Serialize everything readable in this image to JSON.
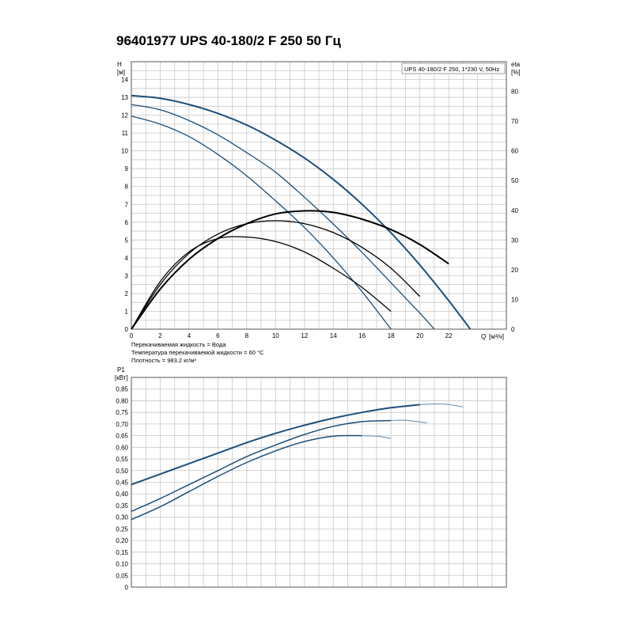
{
  "title": "96401977 UPS 40-180/2 F 250 50 Гц",
  "chart_data": [
    {
      "type": "line",
      "name": "head-and-efficiency",
      "ylabel": "H",
      "yunit": "[м]",
      "y2label": "eta",
      "y2unit": "[%]",
      "xlabel": "Q",
      "xunit": "[м³/ч]",
      "xlim": [
        0,
        26
      ],
      "ylim": [
        0,
        15
      ],
      "y2lim": [
        0,
        90
      ],
      "xticks": [
        0,
        2,
        4,
        6,
        8,
        10,
        12,
        14,
        16,
        18,
        20,
        22
      ],
      "yticks": [
        0,
        1,
        2,
        3,
        4,
        5,
        6,
        7,
        8,
        9,
        10,
        11,
        12,
        13,
        14
      ],
      "y2ticks": [
        0,
        10,
        20,
        30,
        40,
        50,
        60,
        70,
        80
      ],
      "legend_text": "UPS 40-180/2 F 250, 1*230 V, 50Hz",
      "legend_position": "top-right",
      "grid": true,
      "head_series": [
        {
          "color": "#1c4e7a",
          "width": 2.0,
          "x": [
            0,
            2,
            4,
            6,
            8,
            10,
            12,
            14,
            16,
            18,
            20,
            22,
            23.5
          ],
          "y": [
            13.1,
            12.95,
            12.6,
            12.1,
            11.45,
            10.6,
            9.6,
            8.4,
            7.0,
            5.4,
            3.6,
            1.6,
            0
          ]
        },
        {
          "color": "#1c4e7a",
          "width": 1.3,
          "x": [
            0,
            2,
            4,
            6,
            8,
            10,
            12,
            14,
            16,
            18,
            20,
            21
          ],
          "y": [
            12.6,
            12.3,
            11.7,
            10.9,
            9.9,
            8.8,
            7.4,
            5.9,
            4.3,
            2.6,
            0.9,
            0
          ]
        },
        {
          "color": "#1c4e7a",
          "width": 1.3,
          "x": [
            0,
            2,
            4,
            6,
            8,
            10,
            12,
            14,
            16,
            18
          ],
          "y": [
            11.95,
            11.5,
            10.8,
            9.8,
            8.6,
            7.2,
            5.7,
            4.0,
            2.1,
            0
          ]
        }
      ],
      "eta_series": [
        {
          "color": "#000000",
          "width": 2.0,
          "x": [
            0,
            2,
            4,
            6,
            8,
            10,
            12,
            14,
            16,
            18,
            20,
            22
          ],
          "y": [
            0,
            13.5,
            23.5,
            30.5,
            35.5,
            38.8,
            39.8,
            39.3,
            37,
            33.5,
            28.5,
            22
          ]
        },
        {
          "color": "#000000",
          "width": 1.3,
          "x": [
            0,
            2,
            4,
            6,
            8,
            10,
            12,
            14,
            16,
            18,
            20
          ],
          "y": [
            0,
            15,
            25.5,
            32,
            35.5,
            36.5,
            35.5,
            32.5,
            27.5,
            20.5,
            11
          ]
        },
        {
          "color": "#000000",
          "width": 1.3,
          "x": [
            0,
            2,
            4,
            6,
            8,
            10,
            12,
            14,
            16,
            18
          ],
          "y": [
            0,
            16,
            26,
            30.5,
            31,
            29.5,
            26,
            20.5,
            14,
            6
          ]
        }
      ],
      "notes": [
        "Перекачиваемая жидкость = Вода",
        "Температура перекачиваемой жидкости = 60 °C",
        "Плотность = 983.2 кг/м³"
      ]
    },
    {
      "type": "line",
      "name": "power",
      "ylabel": "P1",
      "yunit": "[кВт]",
      "xlim": [
        0,
        26
      ],
      "ylim": [
        0,
        0.9
      ],
      "yticks": [
        "0",
        "0,05",
        "0,10",
        "0,15",
        "0,20",
        "0,25",
        "0,30",
        "0,35",
        "0,40",
        "0,45",
        "0,50",
        "0,55",
        "0,60",
        "0,65",
        "0,70",
        "0,75",
        "0,80",
        "0,85"
      ],
      "grid": true,
      "series": [
        {
          "color": "#1c4e7a",
          "width": 2.0,
          "dash_from": 20.5,
          "x": [
            0,
            2,
            4,
            6,
            8,
            10,
            12,
            14,
            16,
            18,
            20,
            21,
            22,
            23
          ],
          "y": [
            0.44,
            0.485,
            0.53,
            0.575,
            0.62,
            0.66,
            0.695,
            0.725,
            0.75,
            0.77,
            0.783,
            0.786,
            0.784,
            0.773
          ]
        },
        {
          "color": "#1c4e7a",
          "width": 1.5,
          "dash_from": 18.5,
          "x": [
            0,
            2,
            4,
            6,
            8,
            10,
            12,
            14,
            16,
            18,
            19,
            20.5
          ],
          "y": [
            0.325,
            0.38,
            0.44,
            0.5,
            0.56,
            0.61,
            0.655,
            0.69,
            0.71,
            0.715,
            0.716,
            0.705
          ]
        },
        {
          "color": "#1c4e7a",
          "width": 1.5,
          "dash_from": 16.5,
          "x": [
            0,
            2,
            4,
            6,
            8,
            10,
            12,
            14,
            16,
            17,
            18
          ],
          "y": [
            0.29,
            0.345,
            0.41,
            0.475,
            0.535,
            0.585,
            0.625,
            0.648,
            0.65,
            0.648,
            0.638
          ]
        }
      ]
    }
  ]
}
